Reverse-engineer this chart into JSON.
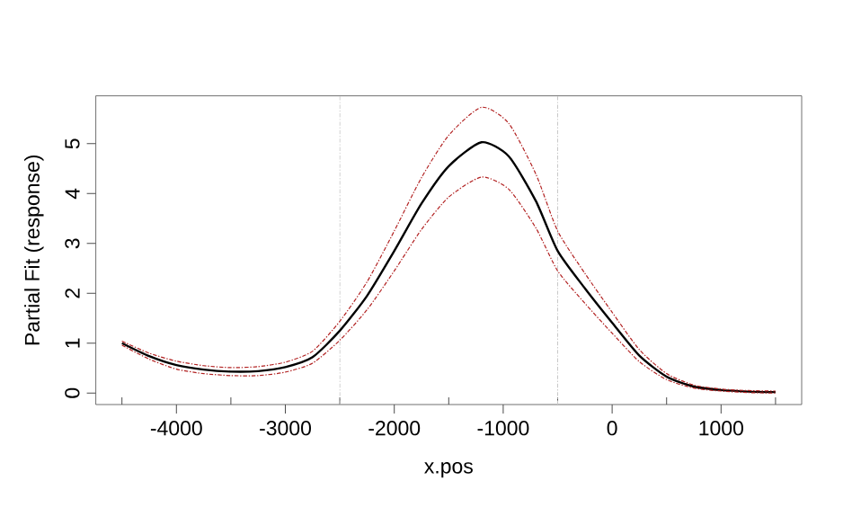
{
  "chart_data": {
    "type": "line",
    "xlabel": "x.pos",
    "ylabel": "Partial Fit (response)",
    "xlim": [
      -4740,
      1740
    ],
    "ylim": [
      -0.23,
      5.96
    ],
    "xticks": [
      {
        "value": -4500,
        "label": null
      },
      -4000,
      {
        "value": -3500,
        "label": null
      },
      -3000,
      {
        "value": -2500,
        "label": null
      },
      -2000,
      {
        "value": -1500,
        "label": null
      },
      -1000,
      {
        "value": -500,
        "label": null
      },
      0,
      {
        "value": 500,
        "label": null
      },
      1000,
      {
        "value": 1500,
        "label": null
      }
    ],
    "yticks": [
      0,
      1,
      2,
      3,
      4,
      5
    ],
    "x": [
      -4500,
      -4250,
      -4000,
      -3750,
      -3500,
      -3250,
      -3000,
      -2750,
      -2500,
      -2250,
      -2000,
      -1750,
      -1500,
      -1200,
      -950,
      -700,
      -500,
      -250,
      0,
      250,
      500,
      750,
      1000,
      1250,
      1500
    ],
    "series": [
      {
        "color": "#000000",
        "line_style": "solid",
        "values": [
          1.0,
          0.74,
          0.56,
          0.47,
          0.43,
          0.44,
          0.52,
          0.72,
          1.25,
          1.95,
          2.85,
          3.8,
          4.55,
          5.03,
          4.75,
          3.85,
          2.85,
          2.1,
          1.41,
          0.75,
          0.33,
          0.13,
          0.06,
          0.03,
          0.02
        ]
      },
      {
        "color": "#b22222",
        "line_style": "dashed",
        "values": [
          0.96,
          0.68,
          0.48,
          0.39,
          0.35,
          0.35,
          0.42,
          0.6,
          1.06,
          1.67,
          2.45,
          3.28,
          3.93,
          4.33,
          4.09,
          3.31,
          2.45,
          1.8,
          1.2,
          0.63,
          0.27,
          0.1,
          0.04,
          0.01,
          0.0
        ]
      },
      {
        "color": "#b22222",
        "line_style": "dashed",
        "values": [
          1.04,
          0.8,
          0.64,
          0.55,
          0.51,
          0.53,
          0.62,
          0.84,
          1.44,
          2.23,
          3.25,
          4.32,
          5.17,
          5.73,
          5.41,
          4.39,
          3.25,
          2.4,
          1.62,
          0.87,
          0.39,
          0.16,
          0.08,
          0.05,
          0.04
        ]
      }
    ],
    "ref_lines": [
      {
        "axis": "x",
        "value": -2500,
        "color": "#c8c8c8",
        "line_style": "dashed"
      },
      {
        "axis": "x",
        "value": -500,
        "color": "#c8c8c8",
        "line_style": "dashed"
      }
    ],
    "grid": false
  }
}
